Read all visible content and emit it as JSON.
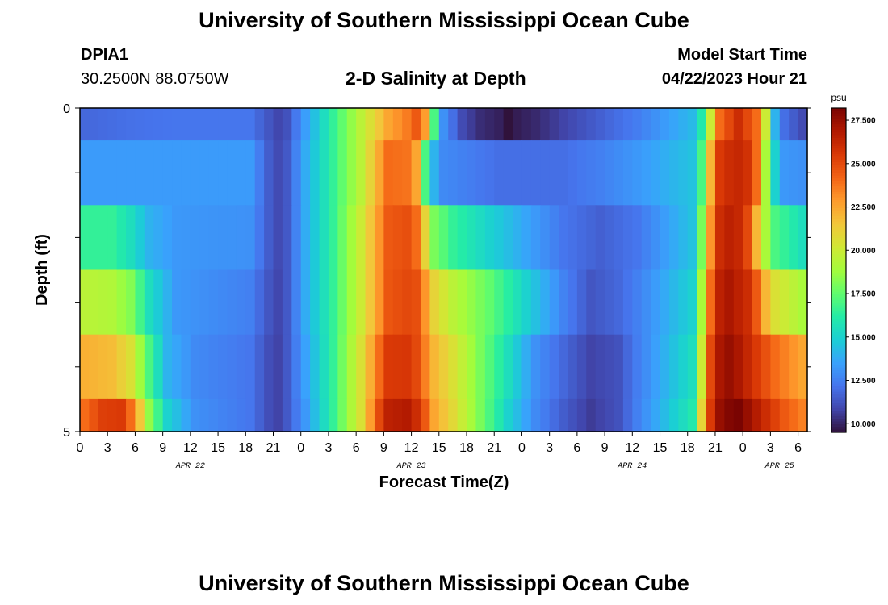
{
  "page": {
    "title": "University of Southern Mississippi Ocean Cube",
    "footer_title": "University of Southern Mississippi Ocean Cube",
    "station_name": "DPIA1",
    "station_coords": "30.2500N  88.0750W",
    "plot_title": "2-D Salinity at Depth",
    "model_start_label": "Model Start Time",
    "model_start_value": "04/22/2023 Hour 21"
  },
  "chart_data": {
    "type": "heatmap",
    "title": "2-D Salinity at Depth",
    "xlabel": "Forecast Time(Z)",
    "ylabel": "Depth (ft)",
    "ylim": [
      0,
      5
    ],
    "y_tick_labels": [
      "0",
      "5"
    ],
    "x_hour_start": 0,
    "x_hour_step": 1,
    "x_hours_count": 79,
    "x_tick_labels": [
      "0",
      "3",
      "6",
      "9",
      "12",
      "15",
      "18",
      "21",
      "0",
      "3",
      "6",
      "9",
      "12",
      "15",
      "18",
      "21",
      "0",
      "3",
      "6",
      "9",
      "12",
      "15",
      "18",
      "21",
      "0",
      "3",
      "6"
    ],
    "x_day_labels": [
      {
        "label": "APR 22",
        "hour": 12
      },
      {
        "label": "APR 23",
        "hour": 36
      },
      {
        "label": "APR 24",
        "hour": 60
      },
      {
        "label": "APR 25",
        "hour": 76
      }
    ],
    "colorbar": {
      "unit": "psu",
      "min": 9.5,
      "max": 28.2,
      "tick_labels": [
        "10.000",
        "12.500",
        "15.000",
        "17.500",
        "20.000",
        "22.500",
        "25.000",
        "27.500"
      ],
      "colors": [
        "#30123b",
        "#4145ab",
        "#4675ed",
        "#39a2fc",
        "#1bcfd4",
        "#24eca6",
        "#61fc6c",
        "#a4fc3b",
        "#d1e834",
        "#f3c63a",
        "#fe9b2d",
        "#f36315",
        "#d93806",
        "#b11901",
        "#7a0402"
      ]
    },
    "depth_layers": [
      {
        "depth": 0,
        "control": [
          [
            0,
            11.8
          ],
          [
            6,
            12.1
          ],
          [
            10,
            12.2
          ],
          [
            18,
            12.2
          ],
          [
            20,
            11.3
          ],
          [
            21,
            10.9
          ],
          [
            22,
            11.2
          ],
          [
            24,
            13.4
          ],
          [
            27,
            16.5
          ],
          [
            30,
            19.5
          ],
          [
            33,
            22.5
          ],
          [
            35,
            23.6
          ],
          [
            36,
            24.5
          ],
          [
            37,
            22.8
          ],
          [
            38,
            17.0
          ],
          [
            39,
            13.0
          ],
          [
            41,
            11.0
          ],
          [
            43,
            10.2
          ],
          [
            45,
            9.9
          ],
          [
            46,
            9.4
          ],
          [
            47,
            9.8
          ],
          [
            49,
            10.1
          ],
          [
            52,
            10.8
          ],
          [
            56,
            11.6
          ],
          [
            60,
            12.4
          ],
          [
            66,
            14.2
          ],
          [
            67,
            16.0
          ],
          [
            68,
            20.0
          ],
          [
            69,
            24.0
          ],
          [
            70,
            25.0
          ],
          [
            71,
            26.0
          ],
          [
            73,
            24.0
          ],
          [
            74,
            20.0
          ],
          [
            75,
            14.0
          ],
          [
            76,
            12.0
          ],
          [
            77,
            11.5
          ],
          [
            78,
            11.0
          ]
        ]
      },
      {
        "depth": 1,
        "control": [
          [
            0,
            13.3
          ],
          [
            18,
            13.3
          ],
          [
            20,
            11.5
          ],
          [
            21,
            11.0
          ],
          [
            22,
            11.4
          ],
          [
            24,
            13.8
          ],
          [
            27,
            16.5
          ],
          [
            30,
            19.5
          ],
          [
            32,
            22.5
          ],
          [
            33,
            24.0
          ],
          [
            35,
            23.8
          ],
          [
            36,
            22.5
          ],
          [
            37,
            17.0
          ],
          [
            38,
            14.0
          ],
          [
            39,
            12.8
          ],
          [
            45,
            12.0
          ],
          [
            52,
            12.0
          ],
          [
            56,
            12.5
          ],
          [
            60,
            13.2
          ],
          [
            66,
            14.5
          ],
          [
            67,
            17.0
          ],
          [
            68,
            22.0
          ],
          [
            69,
            25.5
          ],
          [
            70,
            26.0
          ],
          [
            71,
            26.2
          ],
          [
            72,
            25.8
          ],
          [
            73,
            24.0
          ],
          [
            74,
            19.0
          ],
          [
            75,
            15.0
          ],
          [
            76,
            13.2
          ],
          [
            78,
            13.0
          ]
        ]
      },
      {
        "depth": 2,
        "control": [
          [
            0,
            16.5
          ],
          [
            3,
            16.5
          ],
          [
            5,
            15.5
          ],
          [
            7,
            14.0
          ],
          [
            10,
            13.2
          ],
          [
            18,
            13.0
          ],
          [
            20,
            11.5
          ],
          [
            21,
            11.0
          ],
          [
            22,
            11.4
          ],
          [
            24,
            13.8
          ],
          [
            27,
            16.5
          ],
          [
            30,
            20.0
          ],
          [
            32,
            23.0
          ],
          [
            33,
            24.5
          ],
          [
            35,
            24.8
          ],
          [
            36,
            24.0
          ],
          [
            37,
            21.0
          ],
          [
            38,
            18.0
          ],
          [
            40,
            16.5
          ],
          [
            44,
            15.0
          ],
          [
            48,
            13.6
          ],
          [
            52,
            12.2
          ],
          [
            56,
            11.6
          ],
          [
            60,
            12.2
          ],
          [
            66,
            14.5
          ],
          [
            67,
            18.0
          ],
          [
            68,
            23.0
          ],
          [
            69,
            26.0
          ],
          [
            70,
            26.5
          ],
          [
            71,
            26.2
          ],
          [
            72,
            25.0
          ],
          [
            73,
            22.0
          ],
          [
            74,
            19.0
          ],
          [
            75,
            17.0
          ],
          [
            77,
            16.0
          ],
          [
            78,
            15.5
          ]
        ]
      },
      {
        "depth": 3,
        "control": [
          [
            0,
            19.5
          ],
          [
            3,
            19.2
          ],
          [
            5,
            18.2
          ],
          [
            7,
            15.5
          ],
          [
            10,
            13.2
          ],
          [
            18,
            12.5
          ],
          [
            20,
            11.3
          ],
          [
            21,
            10.9
          ],
          [
            22,
            11.4
          ],
          [
            24,
            13.8
          ],
          [
            27,
            16.5
          ],
          [
            30,
            20.0
          ],
          [
            32,
            23.0
          ],
          [
            33,
            24.6
          ],
          [
            35,
            25.0
          ],
          [
            36,
            24.8
          ],
          [
            37,
            23.0
          ],
          [
            38,
            21.0
          ],
          [
            40,
            19.5
          ],
          [
            44,
            17.5
          ],
          [
            48,
            15.0
          ],
          [
            52,
            12.6
          ],
          [
            55,
            11.3
          ],
          [
            58,
            11.8
          ],
          [
            60,
            12.5
          ],
          [
            66,
            15.0
          ],
          [
            67,
            19.0
          ],
          [
            68,
            24.0
          ],
          [
            69,
            26.5
          ],
          [
            70,
            27.0
          ],
          [
            72,
            26.0
          ],
          [
            73,
            24.5
          ],
          [
            74,
            22.0
          ],
          [
            75,
            20.5
          ],
          [
            77,
            19.5
          ],
          [
            78,
            19.0
          ]
        ]
      },
      {
        "depth": 4,
        "control": [
          [
            0,
            22.2
          ],
          [
            3,
            21.8
          ],
          [
            5,
            20.5
          ],
          [
            7,
            17.0
          ],
          [
            9,
            14.0
          ],
          [
            12,
            12.8
          ],
          [
            18,
            12.2
          ],
          [
            20,
            11.1
          ],
          [
            21,
            10.8
          ],
          [
            22,
            11.4
          ],
          [
            24,
            13.5
          ],
          [
            27,
            16.5
          ],
          [
            30,
            20.5
          ],
          [
            32,
            24.0
          ],
          [
            33,
            25.5
          ],
          [
            35,
            25.6
          ],
          [
            36,
            25.0
          ],
          [
            37,
            23.5
          ],
          [
            38,
            22.0
          ],
          [
            40,
            20.5
          ],
          [
            43,
            18.0
          ],
          [
            46,
            15.5
          ],
          [
            49,
            13.0
          ],
          [
            52,
            11.8
          ],
          [
            55,
            10.8
          ],
          [
            58,
            11.2
          ],
          [
            60,
            12.4
          ],
          [
            66,
            15.5
          ],
          [
            67,
            20.0
          ],
          [
            68,
            25.0
          ],
          [
            69,
            27.0
          ],
          [
            70,
            27.5
          ],
          [
            71,
            27.0
          ],
          [
            73,
            25.5
          ],
          [
            75,
            24.0
          ],
          [
            77,
            23.0
          ],
          [
            78,
            22.5
          ]
        ]
      },
      {
        "depth": 5,
        "control": [
          [
            0,
            24.0
          ],
          [
            2,
            25.3
          ],
          [
            4,
            25.5
          ],
          [
            5,
            24.0
          ],
          [
            6,
            21.5
          ],
          [
            7,
            18.5
          ],
          [
            9,
            15.0
          ],
          [
            12,
            13.0
          ],
          [
            18,
            12.2
          ],
          [
            20,
            11.1
          ],
          [
            21,
            10.8
          ],
          [
            22,
            11.4
          ],
          [
            24,
            13.2
          ],
          [
            27,
            16.5
          ],
          [
            30,
            20.5
          ],
          [
            32,
            25.0
          ],
          [
            33,
            26.5
          ],
          [
            35,
            26.8
          ],
          [
            36,
            26.0
          ],
          [
            37,
            24.5
          ],
          [
            38,
            22.5
          ],
          [
            40,
            20.8
          ],
          [
            43,
            18.0
          ],
          [
            46,
            15.0
          ],
          [
            49,
            12.8
          ],
          [
            52,
            11.5
          ],
          [
            55,
            10.6
          ],
          [
            58,
            11.2
          ],
          [
            60,
            12.5
          ],
          [
            66,
            16.0
          ],
          [
            67,
            21.0
          ],
          [
            68,
            25.5
          ],
          [
            69,
            27.5
          ],
          [
            70,
            28.0
          ],
          [
            71,
            28.2
          ],
          [
            72,
            27.5
          ],
          [
            74,
            26.0
          ],
          [
            76,
            24.5
          ],
          [
            78,
            23.5
          ]
        ]
      }
    ]
  }
}
